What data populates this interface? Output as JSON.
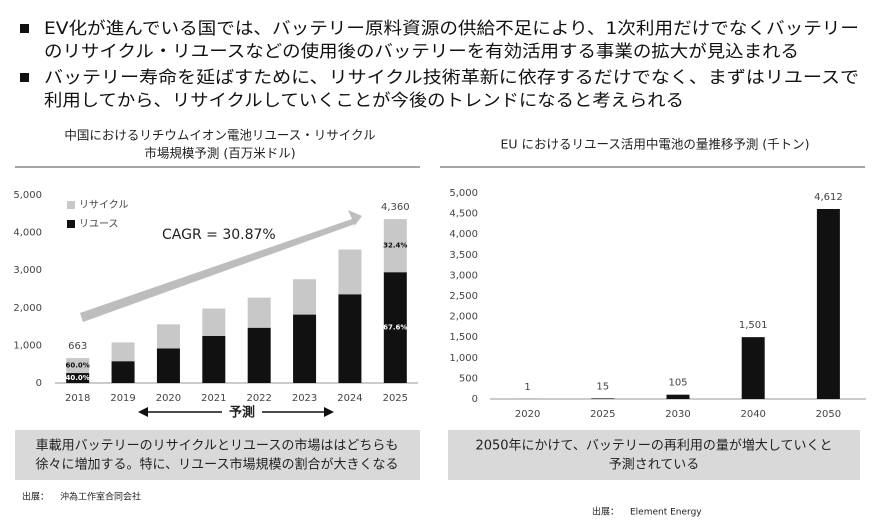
{
  "bullets": [
    [
      "EV化が進んでいる国では、バッテリー原料資源の供給不足により、1次利用だけでなくバッテリー",
      "のリサイクル・リユースなどの使用後のバッテリーを有効活用する事業の拡大が見込まれる"
    ],
    [
      "バッテリー寿命を延ばすために、リサイクル技術革新に依存するだけでなく、まずはリユースで",
      "利用してから、リサイクルしていくことが今後のトレンドになると考えられる"
    ]
  ],
  "chart_data": [
    {
      "type": "stacked_bar",
      "title": [
        "中国におけるリチウムイオン電池リユース・リサイクル",
        "市場規模予測 (百万米ドル)"
      ],
      "categories": [
        "2018",
        "2019",
        "2020",
        "2021",
        "2022",
        "2023",
        "2024",
        "2025"
      ],
      "series": [
        {
          "name": "リユース",
          "color": "#111111",
          "values": [
            265,
            580,
            920,
            1250,
            1470,
            1820,
            2360,
            2947
          ],
          "share_labels": [
            "40.0%",
            null,
            null,
            null,
            null,
            null,
            null,
            "67.6%"
          ]
        },
        {
          "name": "リサイクル",
          "color": "#c8c8c8",
          "values": [
            398,
            500,
            640,
            730,
            800,
            940,
            1190,
            1413
          ],
          "share_labels": [
            "60.0%",
            null,
            null,
            null,
            null,
            null,
            null,
            "32.4%"
          ]
        }
      ],
      "totals": [
        663,
        null,
        null,
        null,
        null,
        null,
        null,
        4360
      ],
      "total_labels": [
        "663",
        null,
        null,
        null,
        null,
        null,
        null,
        "4,360"
      ],
      "annotation": "CAGR = 30.87%",
      "x_label": "予測",
      "ylim": [
        0,
        5000
      ],
      "yticks": [
        0,
        {
          "value": 1000,
          "label": "1,000"
        },
        {
          "value": 2000,
          "label": "2,000"
        },
        {
          "value": 3000,
          "label": "3,000"
        },
        {
          "value": 4000,
          "label": "4,000"
        },
        {
          "value": 5000,
          "label": "5,000"
        }
      ],
      "grid": false
    },
    {
      "type": "bar",
      "title": [
        "EU におけるリユース活用中電池の量推移予測 (千トン)"
      ],
      "categories": [
        "2020",
        "2025",
        "2030",
        "2040",
        "2050"
      ],
      "values": [
        1,
        15,
        105,
        1501,
        4612
      ],
      "value_labels": [
        "1",
        "15",
        "105",
        "1,501",
        "4,612"
      ],
      "color": "#111111",
      "ylim": [
        0,
        5000
      ],
      "yticks": [
        0,
        500,
        {
          "value": 1000,
          "label": "1,000"
        },
        {
          "value": 1500,
          "label": "1,500"
        },
        {
          "value": 2000,
          "label": "2,000"
        },
        {
          "value": 2500,
          "label": "2,500"
        },
        {
          "value": 3000,
          "label": "3,000"
        },
        {
          "value": 3500,
          "label": "3,500"
        },
        {
          "value": 4000,
          "label": "4,000"
        },
        {
          "value": 4500,
          "label": "4,500"
        },
        {
          "value": 5000,
          "label": "5,000"
        }
      ],
      "grid": false
    }
  ],
  "notes": [
    [
      "車載用バッテリーのリサイクルとリユースの市場ははどちらも",
      "徐々に増加する。特に、リユース市場規模の割合が大きくなる"
    ],
    [
      "2050年にかけて、バッテリーの再利用の量が増大していくと",
      "予測されている"
    ]
  ],
  "sources": [
    {
      "label": "出展：",
      "text": "沖為工作室合同会社"
    },
    {
      "label": "出展：",
      "text": "Element Energy"
    }
  ]
}
